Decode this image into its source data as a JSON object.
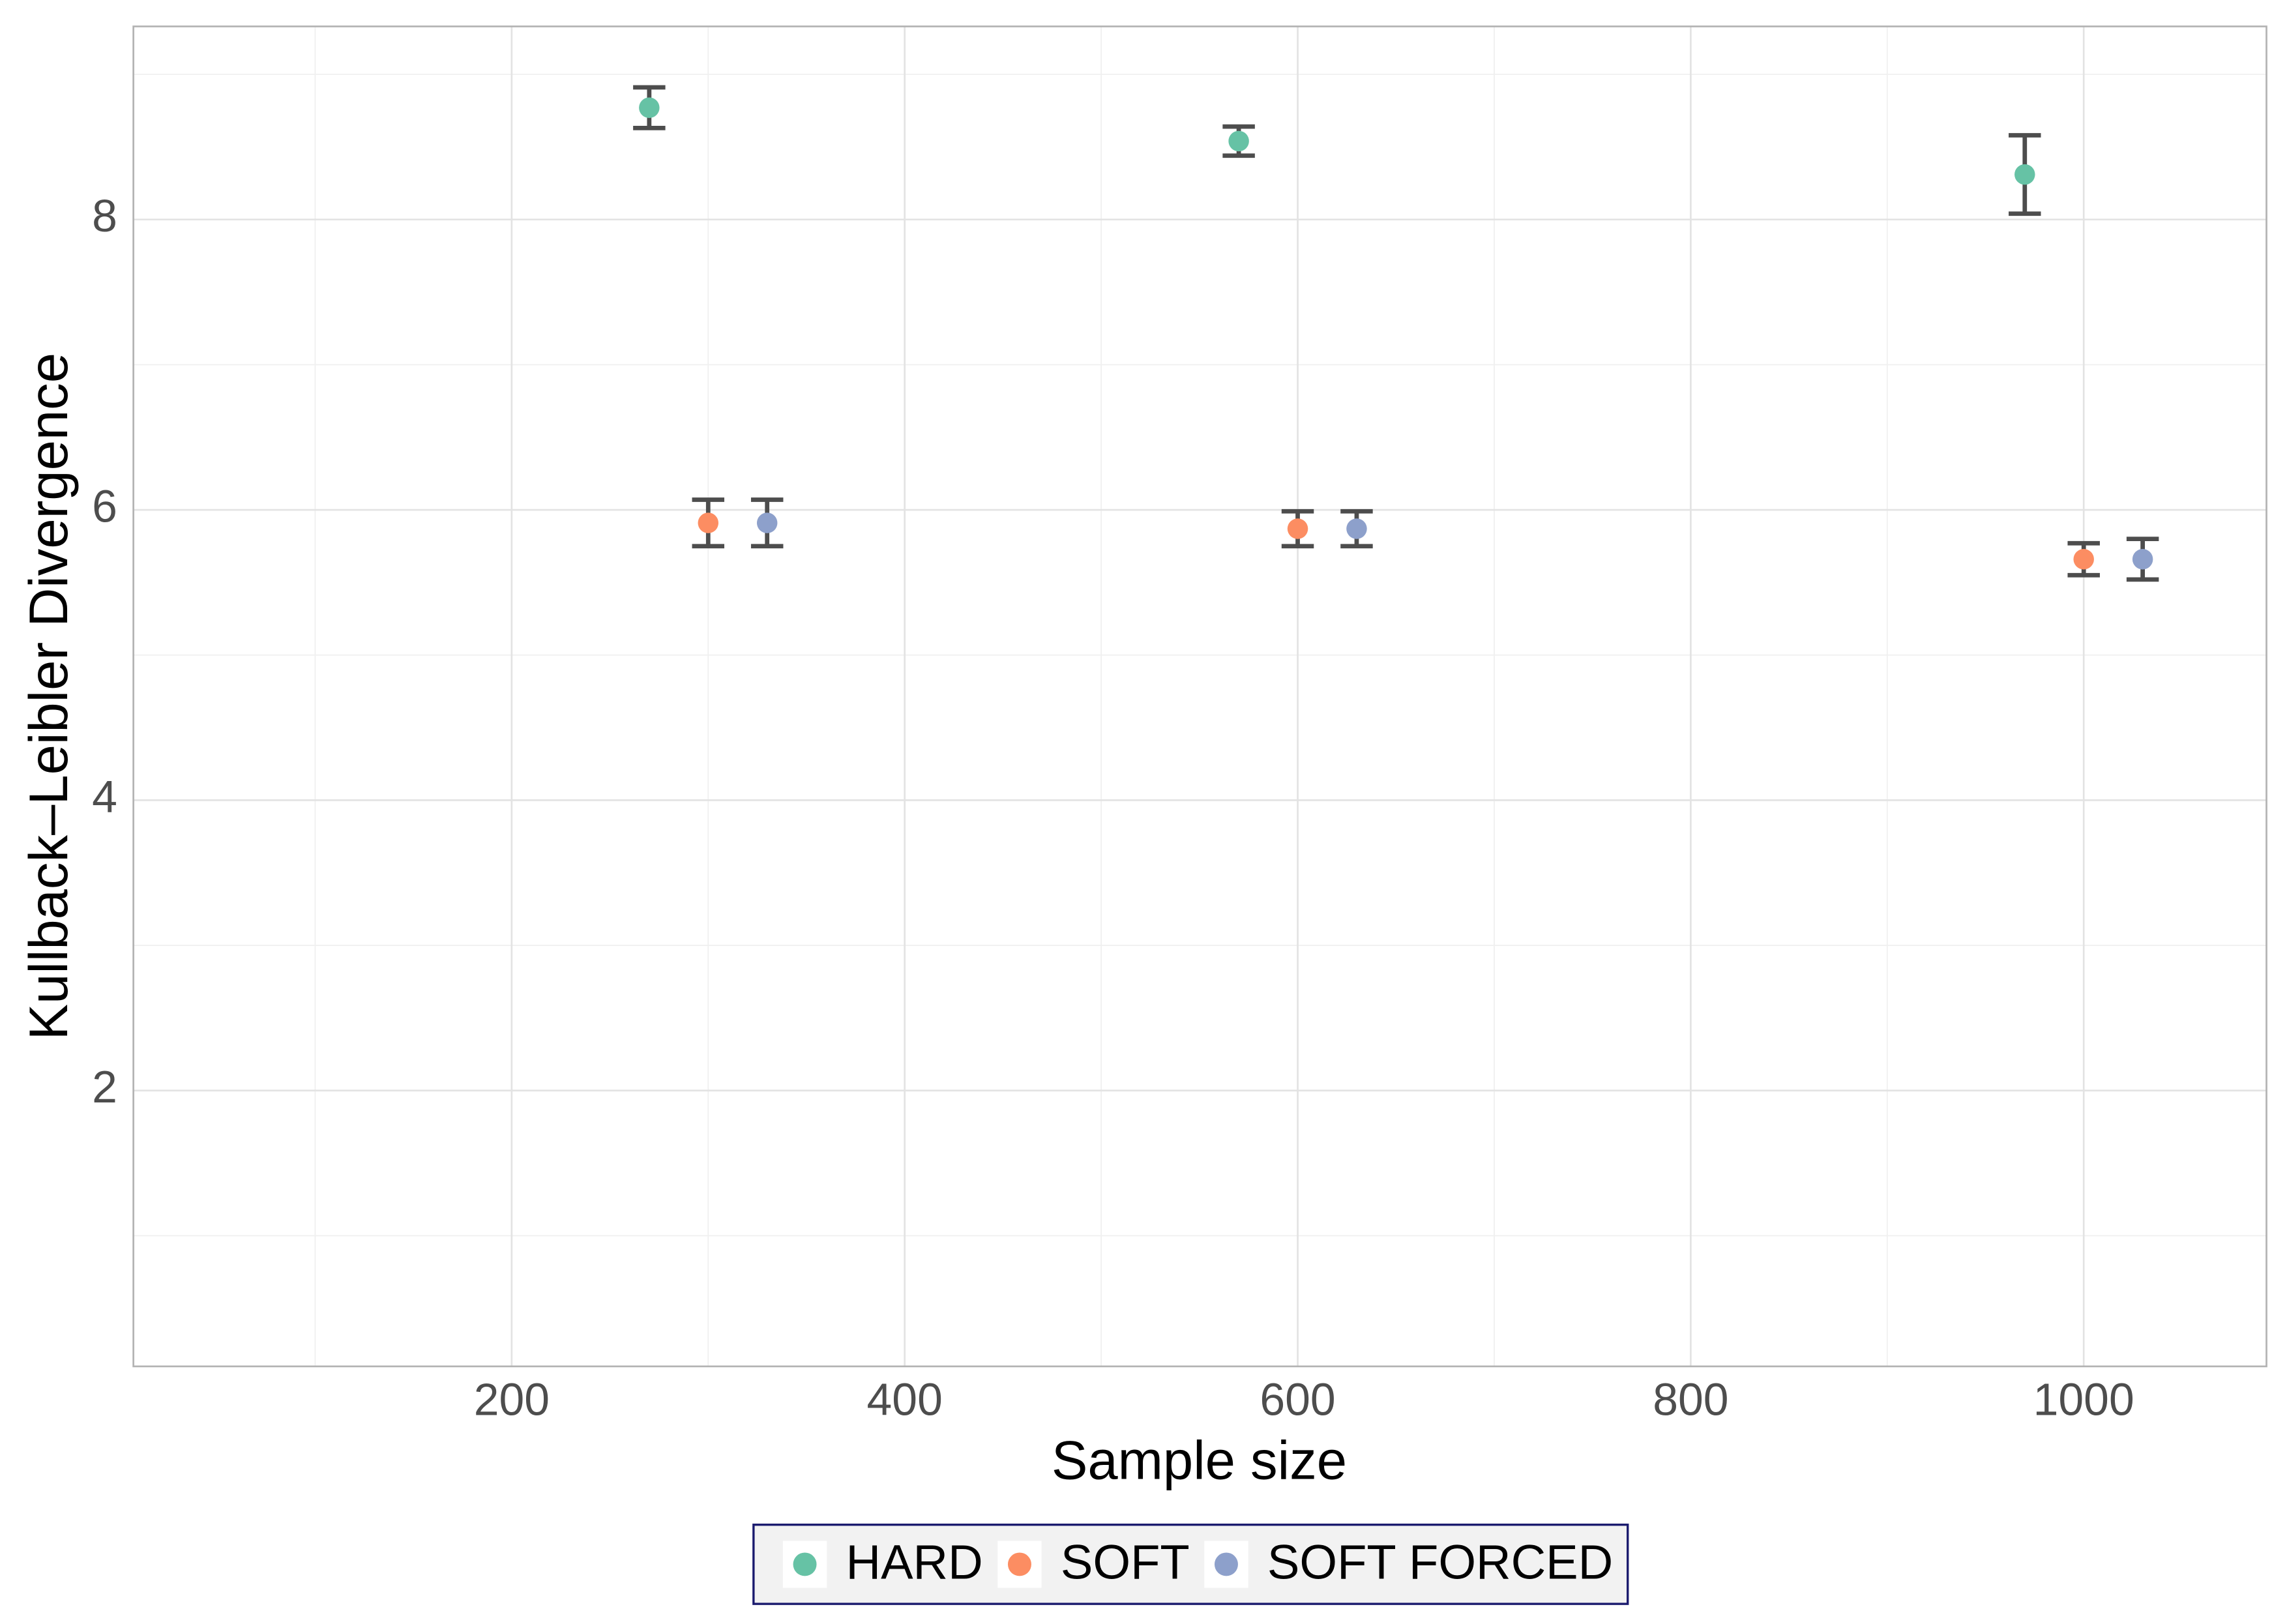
{
  "chart_data": {
    "type": "scatter",
    "x_label": "Sample size",
    "y_label": "Kullback–Leibler Divergence",
    "xlim": [
      7.5,
      1093
    ],
    "ylim": [
      0.1,
      9.33
    ],
    "xticks": [
      200,
      400,
      600,
      800,
      1000
    ],
    "yticks": [
      2,
      4,
      6,
      8
    ],
    "x_minor_ticks": [
      100,
      300,
      500,
      700,
      900
    ],
    "y_minor_ticks": [
      1,
      3,
      5,
      7,
      9
    ],
    "grid": true,
    "legend_position": "bottom",
    "series": [
      {
        "name": "HARD",
        "color": "#66c2a5",
        "x": [
          270,
          570,
          970
        ],
        "values": [
          8.77,
          8.54,
          8.31
        ],
        "errors": [
          0.14,
          0.1,
          0.27
        ]
      },
      {
        "name": "SOFT",
        "color": "#fc8d62",
        "x": [
          300,
          600,
          1000
        ],
        "values": [
          5.91,
          5.87,
          5.66
        ],
        "errors": [
          0.16,
          0.12,
          0.11
        ]
      },
      {
        "name": "SOFT FORCED",
        "color": "#8da0cb",
        "x": [
          330,
          630,
          1030
        ],
        "values": [
          5.91,
          5.87,
          5.66
        ],
        "errors": [
          0.16,
          0.12,
          0.14
        ]
      }
    ]
  }
}
